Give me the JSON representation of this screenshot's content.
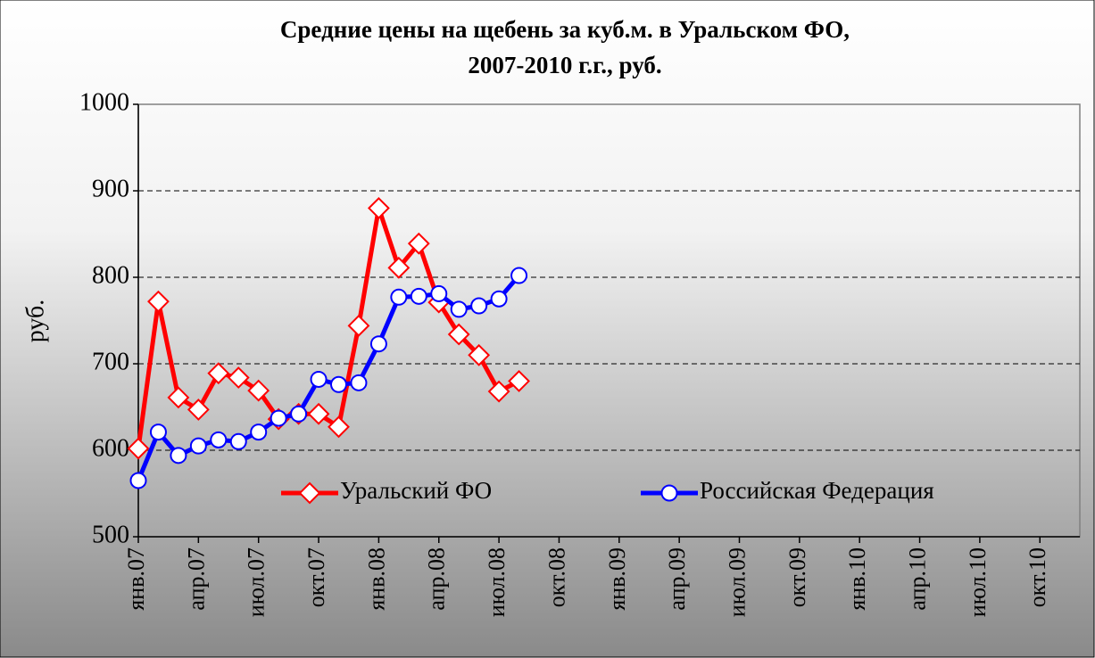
{
  "chart_data": {
    "type": "line",
    "title": [
      "Средние цены на щебень за куб.м. в Уральском ФО,",
      "2007-2010 г.г., руб."
    ],
    "ylabel": "руб.",
    "categories": [
      "янв.07",
      null,
      null,
      "апр.07",
      null,
      null,
      "июл.07",
      null,
      null,
      "окт.07",
      null,
      null,
      "янв.08",
      null,
      null,
      "апр.08",
      null,
      null,
      "июл.08",
      null,
      null,
      "окт.08",
      null,
      null,
      "янв.09",
      null,
      null,
      "апр.09",
      null,
      null,
      "июл.09",
      null,
      null,
      "окт.09",
      null,
      null,
      "янв.10",
      null,
      null,
      "апр.10",
      null,
      null,
      "июл.10",
      null,
      null,
      "окт.10",
      null,
      null
    ],
    "series": [
      {
        "name": "Уральский ФО",
        "color": "#ff0000",
        "marker": "diamond",
        "values": [
          602,
          772,
          661,
          647,
          689,
          684,
          669,
          636,
          642,
          642,
          627,
          744,
          880,
          811,
          839,
          771,
          734,
          710,
          668,
          680,
          null,
          null,
          null,
          null,
          null,
          null,
          null,
          null,
          null,
          null,
          null,
          null,
          null,
          null,
          null,
          null,
          null,
          null,
          null,
          null,
          null,
          null,
          null,
          null,
          null,
          null,
          null,
          null
        ]
      },
      {
        "name": "Российская Федерация",
        "color": "#0000ff",
        "marker": "circle",
        "values": [
          565,
          621,
          594,
          605,
          612,
          610,
          621,
          637,
          642,
          682,
          676,
          678,
          723,
          777,
          778,
          781,
          763,
          767,
          775,
          802,
          null,
          null,
          null,
          null,
          null,
          null,
          null,
          null,
          null,
          null,
          null,
          null,
          null,
          null,
          null,
          null,
          null,
          null,
          null,
          null,
          null,
          null,
          null,
          null,
          null,
          null,
          null,
          null
        ]
      }
    ],
    "ylim": [
      500,
      1000
    ],
    "yticks": [
      500,
      600,
      700,
      800,
      900,
      1000
    ],
    "grid": true
  }
}
